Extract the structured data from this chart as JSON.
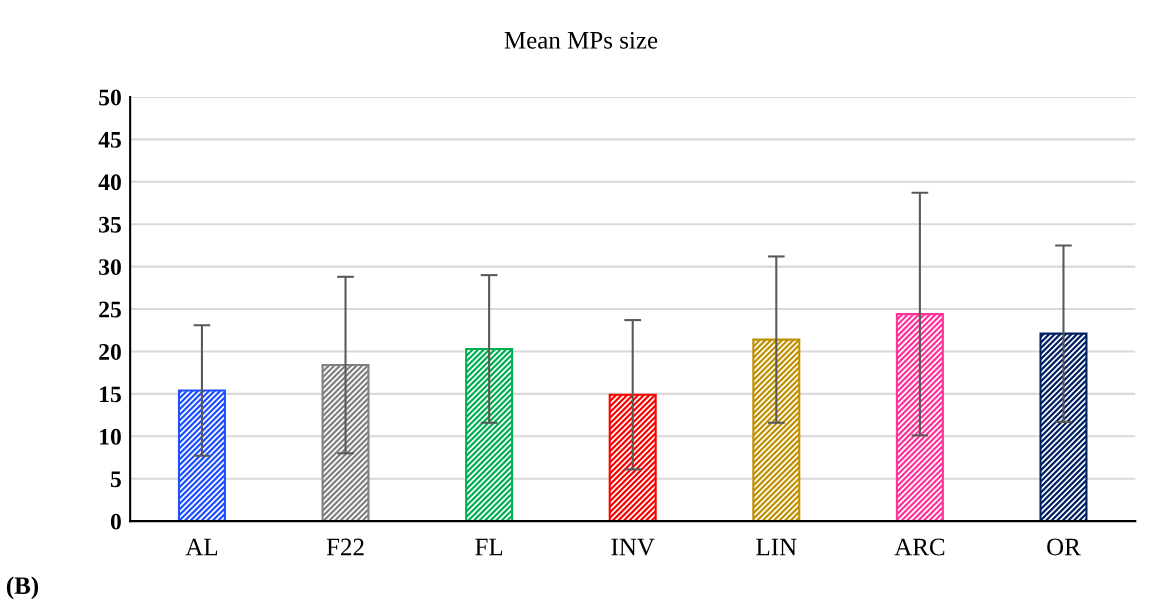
{
  "chart_data": {
    "type": "bar",
    "title": "Mean MPs size",
    "categories": [
      "AL",
      "F22",
      "FL",
      "INV",
      "LIN",
      "ARC",
      "OR"
    ],
    "values": [
      15.4,
      18.4,
      20.3,
      14.9,
      21.4,
      24.4,
      22.1
    ],
    "errors": [
      7.7,
      10.4,
      8.7,
      8.8,
      9.8,
      14.3,
      10.4
    ],
    "colors": [
      "#1f4fff",
      "#808080",
      "#00b050",
      "#ff0000",
      "#bf9000",
      "#ff3399",
      "#002060"
    ],
    "ylim": [
      0,
      50
    ],
    "yticks": [
      0,
      5,
      10,
      15,
      20,
      25,
      30,
      35,
      40,
      45,
      50
    ],
    "grid": "y",
    "annotations": [
      "(B)"
    ]
  }
}
